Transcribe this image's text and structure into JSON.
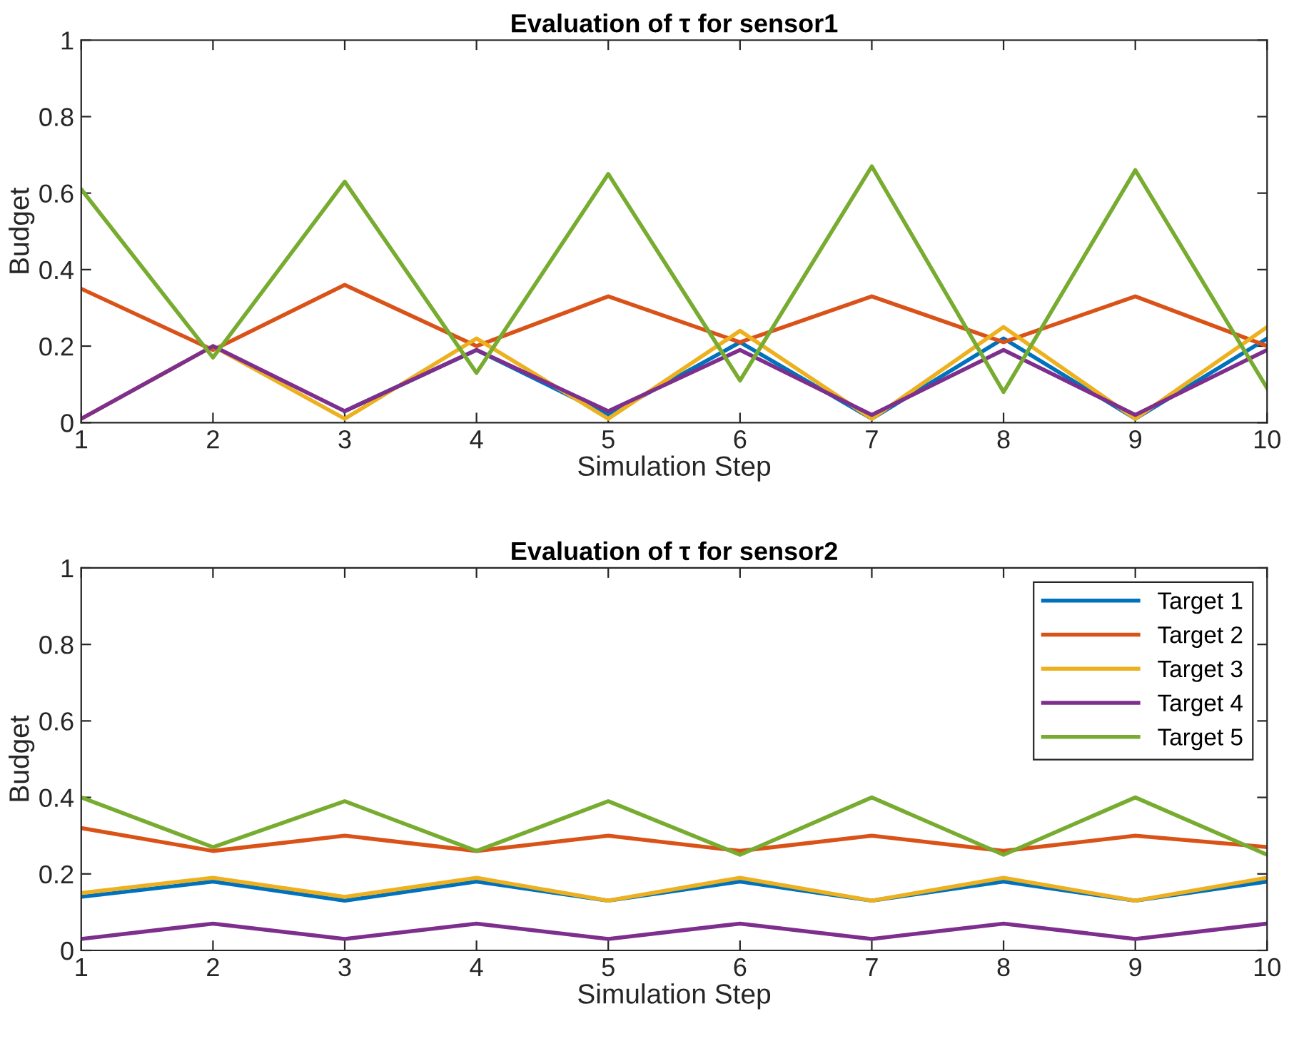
{
  "chart_data": [
    {
      "type": "line",
      "title": "Evaluation of τ for sensor1",
      "xlabel": "Simulation Step",
      "ylabel": "Budget",
      "x": [
        1,
        2,
        3,
        4,
        5,
        6,
        7,
        8,
        9,
        10
      ],
      "xlim": [
        1,
        10
      ],
      "xticks": [
        1,
        2,
        3,
        4,
        5,
        6,
        7,
        8,
        9,
        10
      ],
      "ylim": [
        0,
        1
      ],
      "yticks": [
        0,
        0.2,
        0.4,
        0.6,
        0.8,
        1
      ],
      "grid": false,
      "legend": false,
      "series": [
        {
          "color": "#0072bd",
          "values": [
            null,
            null,
            0.03,
            0.19,
            0.02,
            0.21,
            0.01,
            0.22,
            0.01,
            0.22
          ]
        },
        {
          "color": "#d95319",
          "values": [
            0.35,
            0.19,
            0.36,
            0.2,
            0.33,
            0.21,
            0.33,
            0.21,
            0.33,
            0.2
          ]
        },
        {
          "color": "#edb120",
          "values": [
            0.01,
            0.2,
            0.01,
            0.22,
            0.01,
            0.24,
            0.01,
            0.25,
            0.01,
            0.25
          ]
        },
        {
          "color": "#7e2f8e",
          "values": [
            0.01,
            0.2,
            0.03,
            0.19,
            0.03,
            0.19,
            0.02,
            0.19,
            0.02,
            0.19
          ]
        },
        {
          "color": "#77ac30",
          "values": [
            0.61,
            0.17,
            0.63,
            0.13,
            0.65,
            0.11,
            0.67,
            0.08,
            0.66,
            0.09
          ]
        }
      ]
    },
    {
      "type": "line",
      "title": "Evaluation of τ for sensor2",
      "xlabel": "Simulation Step",
      "ylabel": "Budget",
      "x": [
        1,
        2,
        3,
        4,
        5,
        6,
        7,
        8,
        9,
        10
      ],
      "xlim": [
        1,
        10
      ],
      "xticks": [
        1,
        2,
        3,
        4,
        5,
        6,
        7,
        8,
        9,
        10
      ],
      "ylim": [
        0,
        1
      ],
      "yticks": [
        0,
        0.2,
        0.4,
        0.6,
        0.8,
        1
      ],
      "grid": false,
      "legend": "top right",
      "series": [
        {
          "name": "Target 1",
          "color": "#0072bd",
          "values": [
            0.14,
            0.18,
            0.13,
            0.18,
            0.13,
            0.18,
            0.13,
            0.18,
            0.13,
            0.18
          ]
        },
        {
          "name": "Target 2",
          "color": "#d95319",
          "values": [
            0.32,
            0.26,
            0.3,
            0.26,
            0.3,
            0.26,
            0.3,
            0.26,
            0.3,
            0.27
          ]
        },
        {
          "name": "Target 3",
          "color": "#edb120",
          "values": [
            0.15,
            0.19,
            0.14,
            0.19,
            0.13,
            0.19,
            0.13,
            0.19,
            0.13,
            0.19
          ]
        },
        {
          "name": "Target 4",
          "color": "#7e2f8e",
          "values": [
            0.03,
            0.07,
            0.03,
            0.07,
            0.03,
            0.07,
            0.03,
            0.07,
            0.03,
            0.07
          ]
        },
        {
          "name": "Target 5",
          "color": "#77ac30",
          "values": [
            0.4,
            0.27,
            0.39,
            0.26,
            0.39,
            0.25,
            0.4,
            0.25,
            0.4,
            0.25
          ]
        }
      ]
    }
  ]
}
